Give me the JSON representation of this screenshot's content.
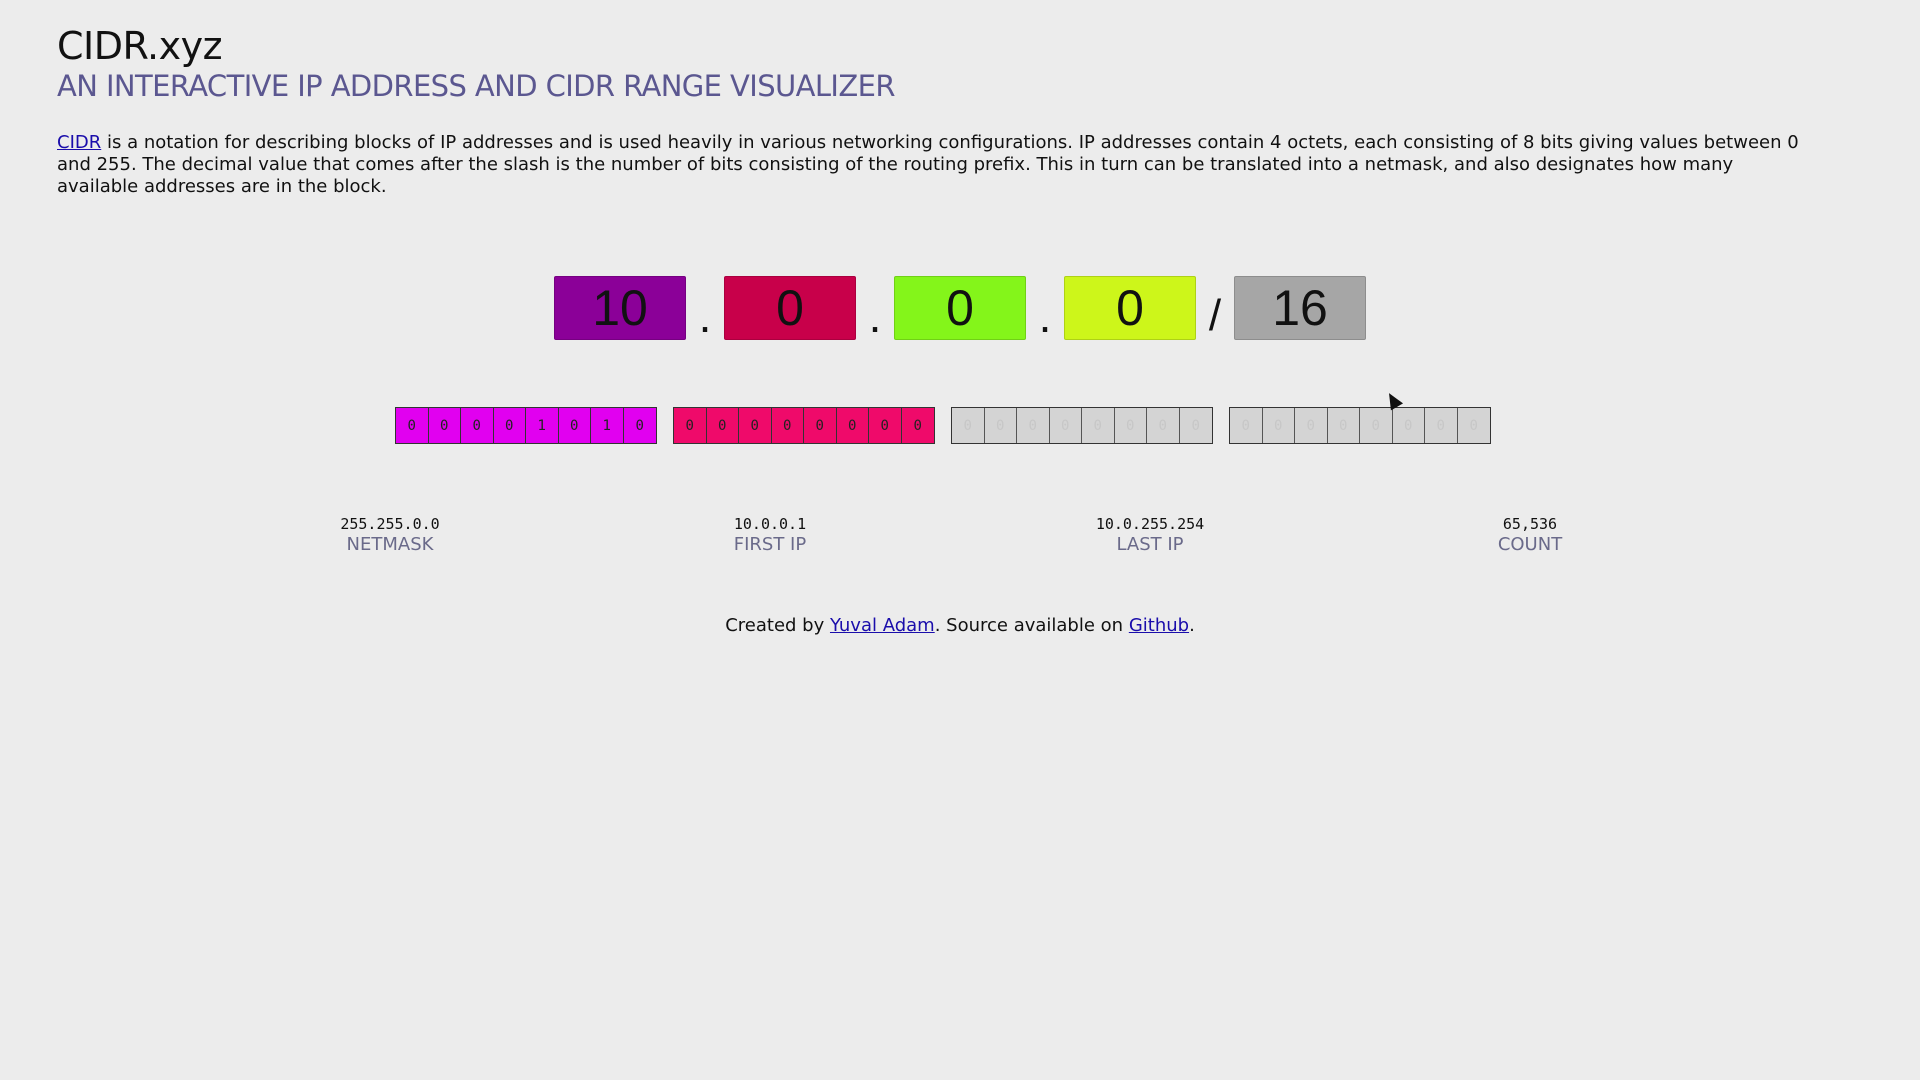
{
  "header": {
    "title": "CIDR.xyz",
    "subtitle": "AN INTERACTIVE IP ADDRESS AND CIDR RANGE VISUALIZER"
  },
  "intro": {
    "link_text": "CIDR",
    "text": " is a notation for describing blocks of IP addresses and is used heavily in various networking configurations. IP addresses contain 4 octets, each consisting of 8 bits giving values between 0 and 255. The decimal value that comes after the slash is the number of bits consisting of the routing prefix. This in turn can be translated into a netmask, and also designates how many available addresses are in the block."
  },
  "cidr": {
    "octets": [
      "10",
      "0",
      "0",
      "0"
    ],
    "dot": ".",
    "slash": "/",
    "prefix": "16",
    "colors": {
      "octet1": "#8b0098",
      "octet2": "#c8004a",
      "octet3": "#84f51a",
      "octet4": "#cdf61a",
      "prefix": "#a6a6a6"
    }
  },
  "bits": {
    "groups": [
      [
        "0",
        "0",
        "0",
        "0",
        "1",
        "0",
        "1",
        "0"
      ],
      [
        "0",
        "0",
        "0",
        "0",
        "0",
        "0",
        "0",
        "0"
      ],
      [
        "0",
        "0",
        "0",
        "0",
        "0",
        "0",
        "0",
        "0"
      ],
      [
        "0",
        "0",
        "0",
        "0",
        "0",
        "0",
        "0",
        "0"
      ]
    ],
    "colors": {
      "group1": "#e100f0",
      "group2": "#ef0a6a",
      "group3": "#d4d4d4",
      "group4": "#d4d4d4"
    }
  },
  "stats": {
    "netmask": {
      "value": "255.255.0.0",
      "label": "NETMASK"
    },
    "first_ip": {
      "value": "10.0.0.1",
      "label": "FIRST IP"
    },
    "last_ip": {
      "value": "10.0.255.254",
      "label": "LAST IP"
    },
    "count": {
      "value": "65,536",
      "label": "COUNT"
    }
  },
  "footer": {
    "prefix": "Created by ",
    "author": "Yuval Adam",
    "middle": ". Source available on ",
    "source": "Github",
    "suffix": "."
  }
}
